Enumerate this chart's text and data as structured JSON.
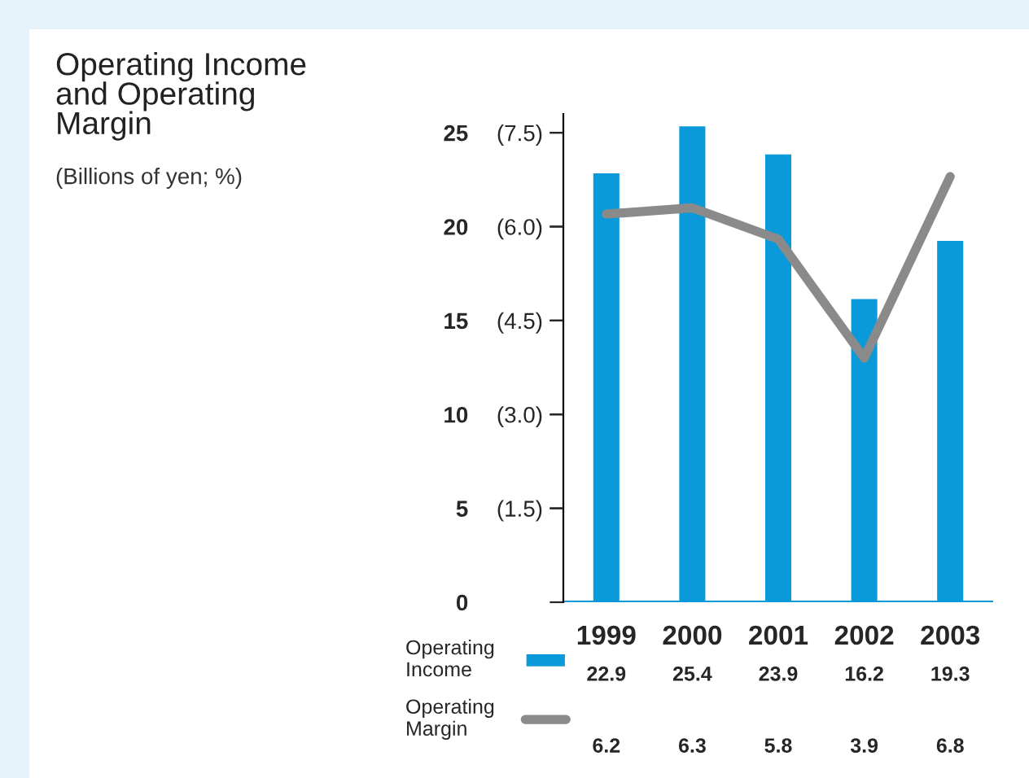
{
  "chart_data": {
    "type": "bar",
    "title": "Operating Income\nand Operating\nMargin",
    "subtitle": "(Billions of yen; %)",
    "categories": [
      "1999",
      "2000",
      "2001",
      "2002",
      "2003"
    ],
    "series": [
      {
        "name": "Operating Income",
        "color": "#0a9ad9",
        "values": [
          22.9,
          25.4,
          23.9,
          16.2,
          19.3
        ]
      },
      {
        "name": "Operating Margin",
        "type": "line",
        "axis": "y2",
        "color": "#8a8a8a",
        "values": [
          6.2,
          6.3,
          5.8,
          3.9,
          6.8
        ]
      }
    ],
    "ylim": [
      0,
      26
    ],
    "yticks": [
      0,
      5,
      10,
      15,
      20,
      25
    ],
    "y2lim": [
      0,
      7.8
    ],
    "y2ticks": [
      {
        "value": 1.5,
        "label": "(1.5)"
      },
      {
        "value": 3.0,
        "label": "(3.0)"
      },
      {
        "value": 4.5,
        "label": "(4.5)"
      },
      {
        "value": 6.0,
        "label": "(6.0)"
      },
      {
        "value": 7.5,
        "label": "(7.5)"
      }
    ],
    "data_labels": true,
    "legend": "bottom left",
    "grid": false,
    "line_style": "solid",
    "marker": "none"
  }
}
